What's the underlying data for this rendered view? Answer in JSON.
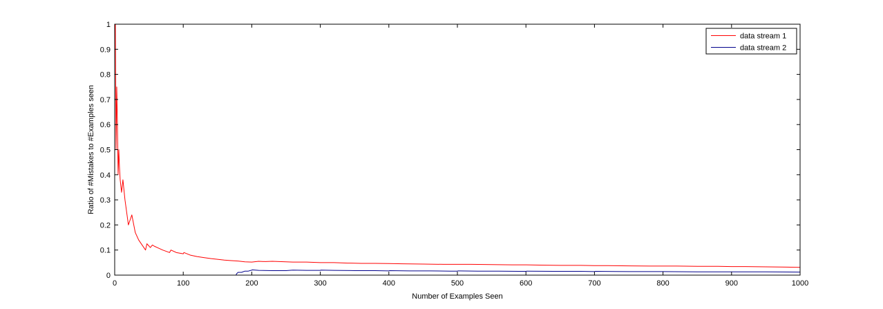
{
  "chart_data": {
    "type": "line",
    "title": "",
    "xlabel": "Number of Examples Seen",
    "ylabel": "Ratio of #Mistakes to #Examples seen",
    "xlim": [
      0,
      1000
    ],
    "ylim": [
      0,
      1
    ],
    "xticks": [
      0,
      100,
      200,
      300,
      400,
      500,
      600,
      700,
      800,
      900,
      1000
    ],
    "yticks": [
      0,
      0.1,
      0.2,
      0.3,
      0.4,
      0.5,
      0.6,
      0.7,
      0.8,
      0.9,
      1
    ],
    "xtick_labels": [
      "0",
      "100",
      "200",
      "300",
      "400",
      "500",
      "600",
      "700",
      "800",
      "900",
      "1000"
    ],
    "ytick_labels": [
      "0",
      "0.1",
      "0.2",
      "0.3",
      "0.4",
      "0.5",
      "0.6",
      "0.7",
      "0.8",
      "0.9",
      "1"
    ],
    "grid": false,
    "legend_position": "top-right",
    "series": [
      {
        "name": "data stream 1",
        "color": "#ff0000",
        "x": [
          1,
          2,
          3,
          4,
          5,
          6,
          7,
          8,
          10,
          12,
          15,
          20,
          25,
          30,
          35,
          40,
          45,
          47,
          52,
          55,
          58,
          62,
          70,
          80,
          82,
          90,
          100,
          101,
          110,
          120,
          130,
          140,
          150,
          160,
          170,
          180,
          190,
          200,
          210,
          220,
          230,
          240,
          250,
          260,
          280,
          300,
          320,
          340,
          360,
          380,
          400,
          420,
          450,
          480,
          500,
          520,
          550,
          580,
          600,
          620,
          650,
          680,
          700,
          720,
          750,
          780,
          800,
          820,
          850,
          880,
          900,
          920,
          950,
          980,
          1000
        ],
        "y": [
          1,
          0.5,
          0.75,
          0.6,
          0.4,
          0.5,
          0.43,
          0.38,
          0.33,
          0.38,
          0.3,
          0.2,
          0.24,
          0.17,
          0.14,
          0.12,
          0.1,
          0.125,
          0.11,
          0.12,
          0.115,
          0.11,
          0.1,
          0.09,
          0.1,
          0.09,
          0.085,
          0.09,
          0.08,
          0.074,
          0.07,
          0.066,
          0.063,
          0.06,
          0.058,
          0.056,
          0.053,
          0.052,
          0.055,
          0.054,
          0.055,
          0.054,
          0.053,
          0.052,
          0.052,
          0.05,
          0.05,
          0.048,
          0.047,
          0.047,
          0.046,
          0.045,
          0.044,
          0.043,
          0.043,
          0.043,
          0.042,
          0.041,
          0.041,
          0.04,
          0.039,
          0.039,
          0.038,
          0.038,
          0.037,
          0.036,
          0.036,
          0.036,
          0.035,
          0.035,
          0.034,
          0.034,
          0.033,
          0.032,
          0.031
        ]
      },
      {
        "name": "data stream 2",
        "color": "#00008b",
        "x": [
          0,
          177,
          178,
          180,
          185,
          190,
          195,
          200,
          201,
          210,
          230,
          250,
          255,
          260,
          280,
          300,
          301,
          320,
          350,
          380,
          400,
          401,
          430,
          460,
          490,
          500,
          501,
          530,
          560,
          590,
          600,
          601,
          640,
          680,
          700,
          701,
          750,
          800,
          850,
          900,
          950,
          1000
        ],
        "y": [
          0,
          0,
          0.006,
          0.011,
          0.011,
          0.016,
          0.016,
          0.02,
          0.021,
          0.019,
          0.018,
          0.018,
          0.019,
          0.02,
          0.019,
          0.019,
          0.02,
          0.019,
          0.018,
          0.018,
          0.017,
          0.018,
          0.017,
          0.017,
          0.016,
          0.016,
          0.017,
          0.016,
          0.016,
          0.015,
          0.015,
          0.016,
          0.015,
          0.015,
          0.014,
          0.015,
          0.014,
          0.014,
          0.013,
          0.013,
          0.013,
          0.012
        ]
      }
    ]
  }
}
